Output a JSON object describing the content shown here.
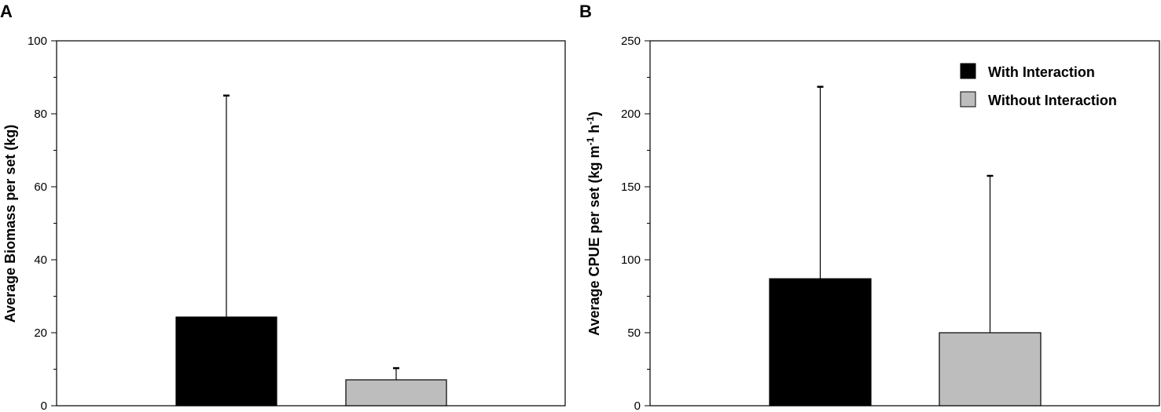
{
  "chart_data": [
    {
      "type": "bar",
      "panel_label": "A",
      "ylabel": "Average Biomass per set (kg)",
      "ylim": [
        0,
        100
      ],
      "yticks": [
        0,
        20,
        40,
        60,
        80,
        100
      ],
      "yticks_minor": [
        10,
        30,
        50,
        70,
        90
      ],
      "categories": [
        "With Interaction",
        "Without Interaction"
      ],
      "values": [
        24.3,
        7.1
      ],
      "error_upper": [
        85.0,
        10.3
      ],
      "colors": [
        "#000000",
        "#bdbdbd"
      ],
      "grid": false,
      "legend": false
    },
    {
      "type": "bar",
      "panel_label": "B",
      "ylabel": "Average CPUE per set (kg m",
      "ylabel_sup1": "-1",
      "ylabel_mid": " h",
      "ylabel_sup2": "-1",
      "ylabel_end": ")",
      "ylim": [
        0,
        250
      ],
      "yticks": [
        0,
        50,
        100,
        150,
        200,
        250
      ],
      "yticks_minor": [
        25,
        75,
        125,
        175,
        225
      ],
      "categories": [
        "With Interaction",
        "Without Interaction"
      ],
      "values": [
        87,
        50
      ],
      "error_upper": [
        218.5,
        157.5
      ],
      "colors": [
        "#000000",
        "#bdbdbd"
      ],
      "grid": false,
      "legend": true,
      "legend_position": "top-right",
      "legend_entries": [
        "With Interaction",
        "Without Interaction"
      ]
    }
  ]
}
